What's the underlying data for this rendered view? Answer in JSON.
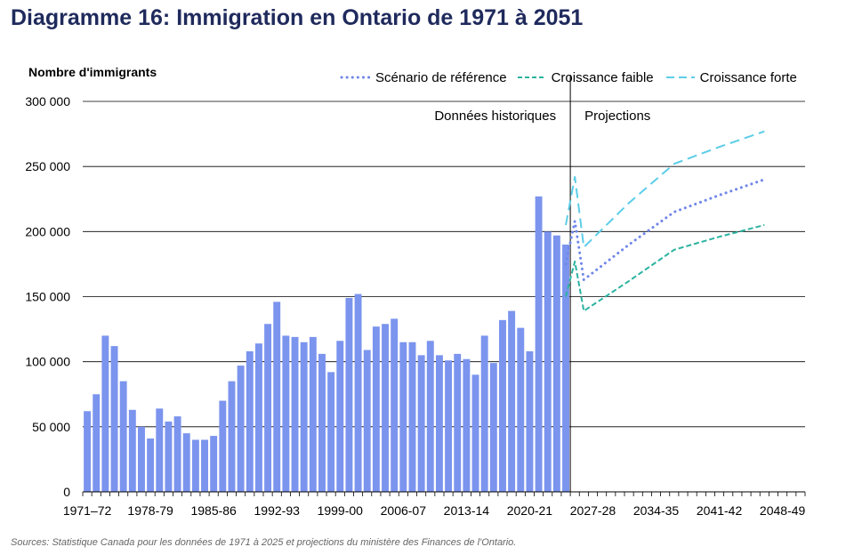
{
  "chart_data": {
    "type": "bar",
    "title": "Diagramme 16: Immigration en Ontario de 1971 à 2051",
    "ylabel": "Nombre d'immigrants",
    "xlabel": "",
    "ylim": [
      0,
      300000
    ],
    "y_ticks": [
      0,
      50000,
      100000,
      150000,
      200000,
      250000,
      300000
    ],
    "y_tick_labels": [
      "0",
      "50 000",
      "100 000",
      "150 000",
      "200 000",
      "250 000",
      "300 000"
    ],
    "x_tick_labels": [
      "1971–72",
      "1978-79",
      "1985-86",
      "1992-93",
      "1999-00",
      "2006-07",
      "2013-14",
      "2020-21",
      "2027-28",
      "2034-35",
      "2041-42",
      "2048-49"
    ],
    "grid": true,
    "legend_position": "top-right",
    "annotations": {
      "historical": "Données historiques",
      "projections": "Projections"
    },
    "historical": {
      "start_label": "1971–72",
      "values": [
        62000,
        75000,
        120000,
        112000,
        85000,
        63000,
        50000,
        41000,
        64000,
        54000,
        58000,
        45000,
        40000,
        40000,
        43000,
        70000,
        85000,
        97000,
        108000,
        114000,
        129000,
        146000,
        120000,
        119000,
        115000,
        119000,
        106000,
        92000,
        116000,
        149000,
        152000,
        109000,
        127000,
        129000,
        133000,
        115000,
        115000,
        105000,
        116000,
        105000,
        101000,
        106000,
        102000,
        90000,
        120000,
        99000,
        132000,
        139000,
        126000,
        108000,
        227000,
        200000,
        197000,
        190000
      ],
      "color": "#7b94ee"
    },
    "series": [
      {
        "name": "Scénario de référence",
        "style": "dotted",
        "color": "#6f86e8",
        "points": [
          [
            53,
            175000
          ],
          [
            54,
            208000
          ],
          [
            55,
            163000
          ],
          [
            60,
            190000
          ],
          [
            65,
            215000
          ],
          [
            70,
            228000
          ],
          [
            75,
            240000
          ]
        ]
      },
      {
        "name": "Croissance faible",
        "style": "dashed",
        "color": "#2bb3a0",
        "points": [
          [
            53,
            150000
          ],
          [
            54,
            177000
          ],
          [
            55,
            139000
          ],
          [
            60,
            162000
          ],
          [
            65,
            186000
          ],
          [
            70,
            196000
          ],
          [
            75,
            205000
          ]
        ]
      },
      {
        "name": "Croissance forte",
        "style": "longdash",
        "color": "#5ccde8",
        "points": [
          [
            53,
            205000
          ],
          [
            54,
            242000
          ],
          [
            55,
            188000
          ],
          [
            60,
            222000
          ],
          [
            65,
            252000
          ],
          [
            70,
            265000
          ],
          [
            75,
            277000
          ]
        ]
      }
    ],
    "source": "Sources: Statistique Canada pour les données de 1971 à 2025 et projections du ministère des Finances de l'Ontario."
  }
}
